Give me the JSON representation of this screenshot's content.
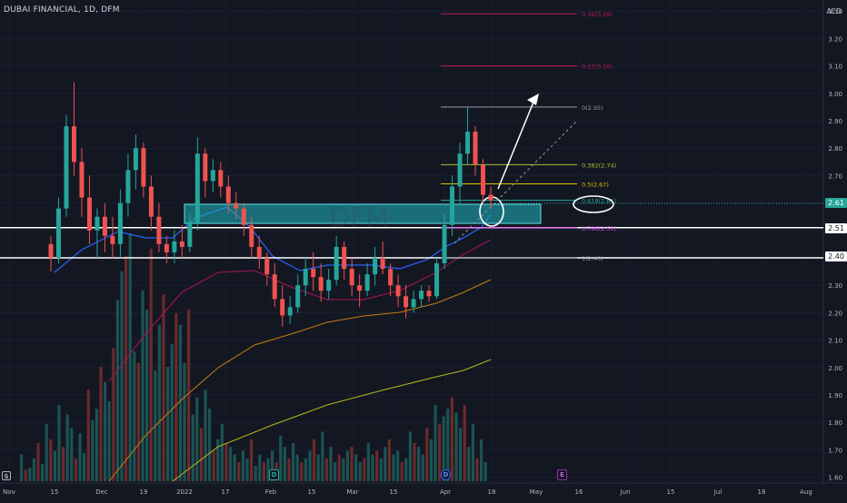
{
  "symbol_header": "DUBAI FINANCIAL, 1D, DFM",
  "currency": "AED",
  "price_labels": {
    "current": "2.61",
    "level1": "2.51",
    "level2": "2.40"
  },
  "events": {
    "earnings": "E",
    "dividend": "D",
    "split": "S"
  },
  "colors": {
    "up": "#26a69a",
    "down": "#ef5350",
    "zone": "#1fb6c1",
    "background": "#131722"
  },
  "chart_data": {
    "type": "candlestick",
    "y_ticks": [
      "3.30",
      "3.20",
      "3.10",
      "3.00",
      "2.90",
      "2.80",
      "2.70",
      "2.60",
      "2.50",
      "2.40",
      "2.30",
      "2.20",
      "2.10",
      "2.00",
      "1.90",
      "1.80",
      "1.70",
      "1.60"
    ],
    "x_ticks": [
      "Nov",
      "15",
      "Dec",
      "19",
      "2022",
      "17",
      "Feb",
      "15",
      "Mar",
      "15",
      "Apr",
      "18",
      "May",
      "16",
      "Jun",
      "15",
      "Jul",
      "18",
      "Aug"
    ],
    "ylim": [
      1.55,
      3.35
    ],
    "fibonacci": [
      {
        "label": "0.32(3.29)",
        "value": 3.29
      },
      {
        "label": "0.27(3.10)",
        "value": 3.1
      },
      {
        "label": "0(2.95)",
        "value": 2.95
      },
      {
        "label": "0.382(2.74)",
        "value": 2.74
      },
      {
        "label": "0.5(2.67)",
        "value": 2.67
      },
      {
        "label": "0.618(2.61)",
        "value": 2.61
      },
      {
        "label": "0.786(2.51)",
        "value": 2.51
      },
      {
        "label": "1(2.40)",
        "value": 2.4
      }
    ],
    "horizontal_levels": [
      2.51,
      2.4
    ],
    "candles": [
      [
        2.45,
        2.48,
        2.35,
        2.4
      ],
      [
        2.4,
        2.62,
        2.38,
        2.58
      ],
      [
        2.58,
        2.92,
        2.55,
        2.88
      ],
      [
        2.88,
        3.04,
        2.7,
        2.75
      ],
      [
        2.75,
        2.8,
        2.55,
        2.62
      ],
      [
        2.62,
        2.7,
        2.45,
        2.5
      ],
      [
        2.5,
        2.58,
        2.4,
        2.55
      ],
      [
        2.55,
        2.6,
        2.42,
        2.48
      ],
      [
        2.48,
        2.55,
        2.4,
        2.45
      ],
      [
        2.45,
        2.65,
        2.4,
        2.6
      ],
      [
        2.6,
        2.78,
        2.55,
        2.72
      ],
      [
        2.72,
        2.85,
        2.65,
        2.8
      ],
      [
        2.8,
        2.82,
        2.62,
        2.66
      ],
      [
        2.66,
        2.7,
        2.5,
        2.55
      ],
      [
        2.55,
        2.6,
        2.42,
        2.45
      ],
      [
        2.45,
        2.48,
        2.38,
        2.42
      ],
      [
        2.42,
        2.5,
        2.38,
        2.46
      ],
      [
        2.46,
        2.52,
        2.4,
        2.44
      ],
      [
        2.44,
        2.56,
        2.42,
        2.53
      ],
      [
        2.53,
        2.84,
        2.5,
        2.78
      ],
      [
        2.78,
        2.8,
        2.62,
        2.68
      ],
      [
        2.68,
        2.76,
        2.64,
        2.72
      ],
      [
        2.72,
        2.75,
        2.62,
        2.66
      ],
      [
        2.66,
        2.7,
        2.56,
        2.6
      ],
      [
        2.6,
        2.64,
        2.54,
        2.58
      ],
      [
        2.58,
        2.6,
        2.48,
        2.52
      ],
      [
        2.52,
        2.55,
        2.4,
        2.44
      ],
      [
        2.44,
        2.48,
        2.36,
        2.4
      ],
      [
        2.4,
        2.42,
        2.3,
        2.34
      ],
      [
        2.34,
        2.38,
        2.22,
        2.25
      ],
      [
        2.25,
        2.3,
        2.15,
        2.19
      ],
      [
        2.19,
        2.26,
        2.16,
        2.22
      ],
      [
        2.22,
        2.34,
        2.2,
        2.3
      ],
      [
        2.3,
        2.4,
        2.26,
        2.36
      ],
      [
        2.36,
        2.42,
        2.28,
        2.33
      ],
      [
        2.33,
        2.38,
        2.24,
        2.28
      ],
      [
        2.28,
        2.36,
        2.25,
        2.32
      ],
      [
        2.32,
        2.48,
        2.3,
        2.44
      ],
      [
        2.44,
        2.46,
        2.32,
        2.36
      ],
      [
        2.36,
        2.4,
        2.26,
        2.3
      ],
      [
        2.3,
        2.34,
        2.22,
        2.28
      ],
      [
        2.28,
        2.38,
        2.26,
        2.34
      ],
      [
        2.34,
        2.44,
        2.3,
        2.4
      ],
      [
        2.4,
        2.46,
        2.34,
        2.36
      ],
      [
        2.36,
        2.38,
        2.26,
        2.3
      ],
      [
        2.3,
        2.34,
        2.22,
        2.26
      ],
      [
        2.26,
        2.3,
        2.18,
        2.22
      ],
      [
        2.22,
        2.28,
        2.2,
        2.25
      ],
      [
        2.25,
        2.3,
        2.22,
        2.28
      ],
      [
        2.28,
        2.3,
        2.24,
        2.26
      ],
      [
        2.26,
        2.4,
        2.25,
        2.38
      ],
      [
        2.38,
        2.56,
        2.36,
        2.52
      ],
      [
        2.52,
        2.7,
        2.48,
        2.66
      ],
      [
        2.66,
        2.82,
        2.6,
        2.78
      ],
      [
        2.78,
        2.95,
        2.74,
        2.86
      ],
      [
        2.86,
        2.88,
        2.7,
        2.74
      ],
      [
        2.74,
        2.76,
        2.6,
        2.63
      ],
      [
        2.63,
        2.66,
        2.58,
        2.61
      ]
    ]
  }
}
